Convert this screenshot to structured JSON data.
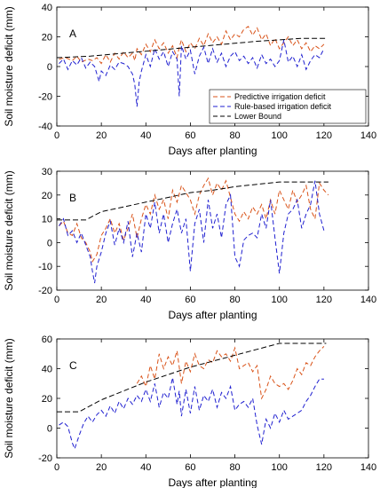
{
  "chart_data": [
    {
      "type": "line",
      "panel_label": "A",
      "xlabel": "Days after planting",
      "ylabel": "Soil moisture deficit (mm)",
      "xlim": [
        0,
        140
      ],
      "ylim": [
        -40,
        40
      ],
      "xticks": [
        0,
        20,
        40,
        60,
        80,
        100,
        120,
        140
      ],
      "yticks": [
        -40,
        -20,
        0,
        20,
        40
      ],
      "grid": false,
      "legend": {
        "placement": "bottom-right",
        "entries": [
          "Predictive irrigation deficit",
          "Rule-based irrigation deficit",
          "Lower Bound"
        ]
      },
      "series": [
        {
          "name": "Predictive irrigation deficit",
          "color": "#d95319",
          "x": [
            1,
            4,
            7,
            9,
            11,
            14,
            16,
            18,
            20,
            22,
            24,
            26,
            28,
            30,
            32,
            34,
            35,
            36,
            38,
            40,
            42,
            44,
            46,
            48,
            50,
            52,
            54,
            55,
            56,
            58,
            60,
            62,
            64,
            66,
            68,
            70,
            72,
            74,
            76,
            78,
            80,
            82,
            84,
            86,
            88,
            90,
            92,
            94,
            96,
            98,
            100,
            102,
            104,
            106,
            108,
            110,
            112,
            114,
            116,
            118,
            120
          ],
          "y": [
            5,
            6,
            4,
            7,
            3,
            5,
            4,
            6,
            2,
            8,
            3,
            9,
            5,
            10,
            6,
            9,
            4,
            12,
            8,
            15,
            10,
            18,
            12,
            16,
            9,
            14,
            6,
            13,
            18,
            10,
            16,
            12,
            19,
            14,
            22,
            16,
            20,
            15,
            24,
            18,
            22,
            20,
            25,
            27,
            21,
            26,
            18,
            22,
            14,
            19,
            12,
            16,
            20,
            14,
            18,
            12,
            16,
            10,
            14,
            12,
            15
          ]
        },
        {
          "name": "Rule-based irrigation deficit",
          "color": "#1f1fd0",
          "x": [
            1,
            3,
            5,
            7,
            9,
            11,
            13,
            15,
            17,
            19,
            20,
            22,
            24,
            26,
            28,
            30,
            32,
            34,
            35,
            36,
            37,
            38,
            40,
            42,
            44,
            46,
            48,
            50,
            52,
            54,
            55,
            56,
            58,
            60,
            62,
            64,
            66,
            68,
            70,
            72,
            74,
            76,
            78,
            80,
            82,
            84,
            86,
            88,
            90,
            92,
            94,
            96,
            98,
            100,
            102,
            104,
            106,
            108,
            110,
            112,
            114,
            116,
            118,
            120
          ],
          "y": [
            2,
            5,
            -2,
            4,
            1,
            6,
            -1,
            3,
            0,
            -10,
            -3,
            -6,
            1,
            -2,
            3,
            2,
            0,
            -5,
            -12,
            -27,
            -10,
            -3,
            8,
            0,
            12,
            5,
            10,
            0,
            10,
            5,
            -20,
            14,
            5,
            11,
            -5,
            7,
            13,
            2,
            12,
            3,
            9,
            0,
            7,
            10,
            4,
            7,
            2,
            6,
            -1,
            8,
            2,
            5,
            0,
            4,
            18,
            3,
            7,
            0,
            8,
            -2,
            4,
            8,
            6,
            12
          ]
        },
        {
          "name": "Lower Bound",
          "color": "#000000",
          "x": [
            0,
            15,
            30,
            45,
            60,
            75,
            90,
            100,
            110,
            121
          ],
          "y": [
            6,
            7,
            9,
            11,
            13,
            15,
            17,
            18,
            19,
            19
          ]
        }
      ]
    },
    {
      "type": "line",
      "panel_label": "B",
      "xlabel": "Days after planting",
      "ylabel": "Soil moisture deficit (mm)",
      "xlim": [
        0,
        140
      ],
      "ylim": [
        -20,
        30
      ],
      "xticks": [
        0,
        20,
        40,
        60,
        80,
        100,
        120,
        140
      ],
      "yticks": [
        -20,
        -10,
        0,
        10,
        20,
        30
      ],
      "grid": false,
      "series": [
        {
          "name": "Predictive irrigation deficit",
          "color": "#d95319",
          "x": [
            1,
            3,
            5,
            7,
            9,
            11,
            13,
            15,
            16,
            18,
            20,
            22,
            24,
            26,
            28,
            30,
            32,
            34,
            36,
            38,
            40,
            42,
            44,
            46,
            48,
            50,
            52,
            54,
            56,
            58,
            60,
            62,
            64,
            66,
            68,
            70,
            72,
            74,
            76,
            78,
            80,
            82,
            84,
            86,
            88,
            90,
            92,
            94,
            96,
            98,
            100,
            102,
            104,
            106,
            108,
            110,
            112,
            114,
            116,
            118,
            120,
            122
          ],
          "y": [
            7,
            9,
            4,
            3,
            8,
            2,
            0,
            -4,
            -8,
            -5,
            3,
            6,
            10,
            4,
            8,
            1,
            6,
            12,
            2,
            10,
            16,
            12,
            20,
            14,
            18,
            10,
            22,
            17,
            24,
            21,
            18,
            12,
            20,
            24,
            27,
            20,
            25,
            22,
            26,
            19,
            12,
            9,
            13,
            10,
            15,
            12,
            16,
            10,
            18,
            12,
            22,
            18,
            14,
            22,
            17,
            20,
            24,
            14,
            10,
            25,
            22,
            20
          ]
        },
        {
          "name": "Rule-based irrigation deficit",
          "color": "#1f1fd0",
          "x": [
            1,
            3,
            5,
            7,
            9,
            11,
            13,
            15,
            16,
            17,
            18,
            20,
            22,
            24,
            26,
            28,
            30,
            32,
            34,
            36,
            38,
            40,
            42,
            44,
            46,
            48,
            50,
            52,
            54,
            56,
            58,
            60,
            62,
            64,
            66,
            68,
            70,
            72,
            74,
            76,
            78,
            80,
            82,
            84,
            86,
            88,
            90,
            92,
            94,
            96,
            98,
            100,
            102,
            104,
            106,
            108,
            110,
            112,
            114,
            116,
            118,
            120
          ],
          "y": [
            7,
            10,
            3,
            5,
            0,
            4,
            -1,
            -6,
            -12,
            -17,
            -10,
            -4,
            4,
            9,
            -1,
            6,
            0,
            9,
            -6,
            4,
            -4,
            12,
            6,
            17,
            4,
            12,
            0,
            8,
            14,
            4,
            10,
            -12,
            8,
            14,
            0,
            18,
            6,
            12,
            2,
            16,
            20,
            -6,
            -10,
            1,
            3,
            4,
            2,
            12,
            6,
            18,
            2,
            -13,
            4,
            12,
            14,
            18,
            6,
            12,
            16,
            26,
            12,
            5
          ]
        },
        {
          "name": "Lower Bound",
          "color": "#000000",
          "x": [
            0,
            13,
            20,
            30,
            40,
            50,
            60,
            70,
            80,
            90,
            100,
            110,
            122
          ],
          "y": [
            9.5,
            9.5,
            13,
            15,
            17,
            19,
            21,
            22,
            23.5,
            24.5,
            25.5,
            25.5,
            25.5
          ]
        }
      ]
    },
    {
      "type": "line",
      "panel_label": "C",
      "xlabel": "Days after planting",
      "ylabel": "Soil moisture deficit (mm)",
      "xlim": [
        0,
        140
      ],
      "ylim": [
        -20,
        60
      ],
      "xticks": [
        0,
        20,
        40,
        60,
        80,
        100,
        120,
        140
      ],
      "yticks": [
        -20,
        0,
        20,
        40,
        60
      ],
      "grid": false,
      "series": [
        {
          "name": "Predictive irrigation deficit",
          "color": "#d95319",
          "x": [
            36,
            38,
            40,
            42,
            44,
            46,
            48,
            50,
            52,
            54,
            56,
            58,
            60,
            62,
            64,
            66,
            68,
            70,
            72,
            74,
            76,
            78,
            80,
            82,
            84,
            86,
            88,
            90,
            92,
            94,
            96,
            98,
            100,
            102,
            104,
            106,
            108,
            110,
            112,
            114,
            116,
            118,
            120
          ],
          "y": [
            30,
            35,
            28,
            42,
            33,
            50,
            40,
            48,
            42,
            52,
            30,
            45,
            38,
            50,
            42,
            40,
            46,
            44,
            52,
            48,
            50,
            45,
            54,
            40,
            42,
            44,
            38,
            42,
            20,
            26,
            35,
            30,
            28,
            30,
            26,
            32,
            40,
            36,
            44,
            42,
            48,
            52,
            55
          ]
        },
        {
          "name": "Rule-based irrigation deficit",
          "color": "#1f1fd0",
          "x": [
            1,
            3,
            5,
            7,
            8,
            10,
            12,
            14,
            16,
            18,
            20,
            22,
            24,
            26,
            28,
            30,
            32,
            34,
            36,
            38,
            40,
            42,
            44,
            46,
            48,
            50,
            52,
            54,
            55,
            56,
            58,
            60,
            62,
            64,
            66,
            68,
            70,
            72,
            74,
            76,
            78,
            80,
            82,
            84,
            86,
            88,
            90,
            92,
            94,
            96,
            98,
            100,
            102,
            104,
            106,
            108,
            110,
            112,
            114,
            116,
            118,
            120
          ],
          "y": [
            2,
            4,
            1,
            -10,
            -14,
            -5,
            3,
            8,
            4,
            9,
            12,
            8,
            15,
            10,
            18,
            13,
            20,
            16,
            22,
            18,
            26,
            18,
            30,
            14,
            24,
            20,
            34,
            16,
            25,
            8,
            26,
            10,
            28,
            12,
            22,
            18,
            26,
            14,
            24,
            20,
            28,
            12,
            16,
            18,
            14,
            20,
            2,
            -11,
            6,
            0,
            10,
            4,
            12,
            6,
            8,
            10,
            12,
            18,
            22,
            28,
            33,
            33
          ]
        },
        {
          "name": "Lower Bound",
          "color": "#000000",
          "x": [
            0,
            10,
            20,
            30,
            40,
            50,
            60,
            70,
            80,
            90,
            100,
            110,
            121
          ],
          "y": [
            11,
            11,
            19,
            25,
            31,
            36,
            41,
            45,
            49,
            53,
            57,
            57,
            57
          ]
        }
      ]
    }
  ]
}
